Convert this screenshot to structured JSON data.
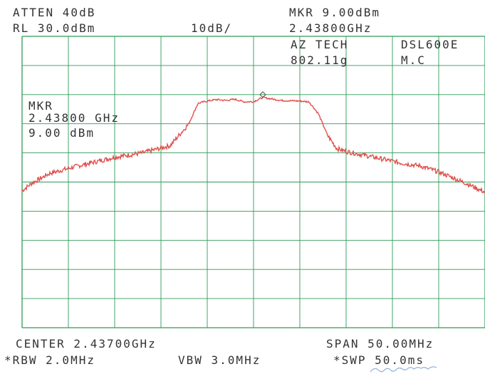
{
  "header": {
    "atten": "ATTEN 40dB",
    "ref_level": "RL 30.0dBm",
    "scale": "10dB/",
    "marker_level": "MKR 9.00dBm",
    "marker_freq": "2.43800GHz"
  },
  "annotations": {
    "company": "AZ TECH",
    "model": "DSL600E",
    "standard": "802.11g",
    "channel": "M.C",
    "mkr_label": "MKR",
    "mkr_freq": "2.43800 GHz",
    "mkr_level": "9.00 dBm"
  },
  "footer": {
    "center": "CENTER 2.43700GHz",
    "span": "SPAN 50.00MHz",
    "rbw": "*RBW 2.0MHz",
    "vbw": "VBW 3.0MHz",
    "sweep": "*SWP 50.0ms"
  },
  "colors": {
    "grid": "#2f9a57",
    "trace": "#e0504d",
    "text": "#333333",
    "signature": "#8fb0d8"
  },
  "chart_data": {
    "type": "line",
    "x_unit": "GHz",
    "y_unit": "dBm",
    "xlim": [
      2.412,
      2.462
    ],
    "ylim": [
      -70,
      30
    ],
    "grid": true,
    "marker": {
      "x": 2.438,
      "y": 9.0
    },
    "series": [
      {
        "x": [
          2.412,
          2.413,
          2.415,
          2.418,
          2.42,
          2.422,
          2.425,
          2.428,
          2.43,
          2.431,
          2.432,
          2.433,
          2.434,
          2.435,
          2.436,
          2.437,
          2.438,
          2.44,
          2.442,
          2.443,
          2.444,
          2.445,
          2.446,
          2.447,
          2.45,
          2.453,
          2.455,
          2.457,
          2.46,
          2.462
        ],
        "y": [
          -23.0,
          -20.5,
          -17.0,
          -14.5,
          -13.0,
          -11.5,
          -10.0,
          -7.5,
          0.0,
          7.0,
          7.8,
          8.3,
          8.0,
          8.4,
          7.5,
          7.6,
          9.0,
          8.0,
          7.8,
          7.5,
          3.5,
          -4.0,
          -8.5,
          -9.5,
          -11.5,
          -13.5,
          -14.5,
          -16.5,
          -20.5,
          -23.5
        ]
      }
    ]
  }
}
